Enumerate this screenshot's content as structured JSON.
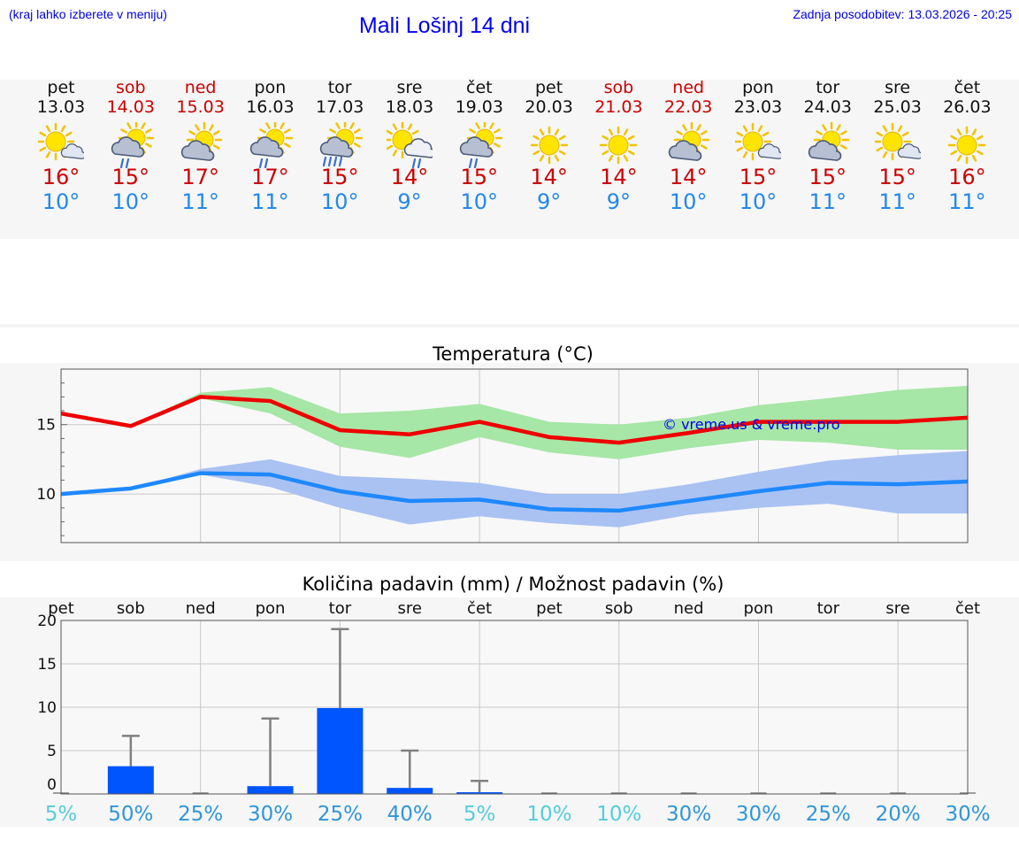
{
  "header": {
    "hint": "(kraj lahko izberete v meniju)",
    "title": "Mali Lošinj 14 dni",
    "updated": "Zadnja posodobitev: 13.03.2026 - 20:25"
  },
  "days": [
    {
      "name": "pet",
      "date": "13.03",
      "weekend": false,
      "icon": "partly-cloudy-icon",
      "max": "16°",
      "min": "10°"
    },
    {
      "name": "sob",
      "date": "14.03",
      "weekend": true,
      "icon": "cloud-rain-icon",
      "max": "15°",
      "min": "10°"
    },
    {
      "name": "ned",
      "date": "15.03",
      "weekend": true,
      "icon": "cloudy-sun-icon",
      "max": "17°",
      "min": "11°"
    },
    {
      "name": "pon",
      "date": "16.03",
      "weekend": false,
      "icon": "cloud-rain-icon",
      "max": "17°",
      "min": "11°"
    },
    {
      "name": "tor",
      "date": "17.03",
      "weekend": false,
      "icon": "cloud-heavy-rain-icon",
      "max": "15°",
      "min": "10°"
    },
    {
      "name": "sre",
      "date": "18.03",
      "weekend": false,
      "icon": "sun-cloud-rain-icon",
      "max": "14°",
      "min": "9°"
    },
    {
      "name": "čet",
      "date": "19.03",
      "weekend": false,
      "icon": "cloud-rain-icon",
      "max": "15°",
      "min": "10°"
    },
    {
      "name": "pet",
      "date": "20.03",
      "weekend": false,
      "icon": "sun-icon",
      "max": "14°",
      "min": "9°"
    },
    {
      "name": "sob",
      "date": "21.03",
      "weekend": true,
      "icon": "sun-icon",
      "max": "14°",
      "min": "9°"
    },
    {
      "name": "ned",
      "date": "22.03",
      "weekend": true,
      "icon": "cloudy-sun-icon",
      "max": "14°",
      "min": "10°"
    },
    {
      "name": "pon",
      "date": "23.03",
      "weekend": false,
      "icon": "partly-cloudy-icon",
      "max": "15°",
      "min": "10°"
    },
    {
      "name": "tor",
      "date": "24.03",
      "weekend": false,
      "icon": "cloudy-sun-icon",
      "max": "15°",
      "min": "11°"
    },
    {
      "name": "sre",
      "date": "25.03",
      "weekend": false,
      "icon": "partly-cloudy-icon",
      "max": "15°",
      "min": "11°"
    },
    {
      "name": "čet",
      "date": "26.03",
      "weekend": false,
      "icon": "sun-icon",
      "max": "16°",
      "min": "11°"
    }
  ],
  "chart_data": [
    {
      "type": "line",
      "title": "Temperatura (°C)",
      "watermark": "© vreme.us & vreme.pro",
      "ylim": [
        6.5,
        19
      ],
      "yticks": [
        10,
        15
      ],
      "x": [
        0,
        1,
        2,
        3,
        4,
        5,
        6,
        7,
        8,
        9,
        10,
        11,
        12,
        13
      ],
      "series": [
        {
          "name": "max",
          "color": "#ee0000",
          "values": [
            15.8,
            14.9,
            17.0,
            16.7,
            14.6,
            14.3,
            15.2,
            14.1,
            13.7,
            14.4,
            15.2,
            15.2,
            15.2,
            15.5
          ],
          "band_low": [
            15.8,
            14.9,
            16.9,
            15.8,
            13.4,
            12.6,
            14.1,
            13.0,
            12.5,
            13.3,
            13.9,
            13.7,
            13.2,
            13.2
          ],
          "band_high": [
            15.8,
            14.9,
            17.3,
            17.7,
            15.8,
            16.0,
            16.5,
            15.2,
            15.0,
            15.5,
            16.4,
            16.9,
            17.5,
            17.8
          ],
          "band_color": "#a6e6a6"
        },
        {
          "name": "min",
          "color": "#1e88ff",
          "values": [
            10.0,
            10.4,
            11.5,
            11.4,
            10.2,
            9.5,
            9.6,
            8.9,
            8.8,
            9.5,
            10.2,
            10.8,
            10.7,
            10.9
          ],
          "band_low": [
            10.0,
            10.4,
            11.4,
            10.5,
            9.0,
            7.8,
            8.4,
            7.9,
            7.6,
            8.5,
            9.0,
            9.3,
            8.6,
            8.6
          ],
          "band_high": [
            10.0,
            10.4,
            11.8,
            12.5,
            11.3,
            11.1,
            10.8,
            10.0,
            10.0,
            10.7,
            11.6,
            12.4,
            12.8,
            13.1
          ],
          "band_color": "#aac2f2"
        }
      ]
    },
    {
      "type": "bar",
      "title": "Količina padavin (mm) / Možnost padavin (%)",
      "ylim": [
        0,
        20
      ],
      "yticks": [
        0,
        5,
        10,
        15,
        20
      ],
      "categories": [
        "pet",
        "sob",
        "ned",
        "pon",
        "tor",
        "sre",
        "čet",
        "pet",
        "sob",
        "ned",
        "pon",
        "tor",
        "sre",
        "čet"
      ],
      "values": [
        0,
        3.2,
        0,
        0.9,
        9.9,
        0.7,
        0.2,
        0,
        0,
        0,
        0,
        0,
        0,
        0
      ],
      "error_high": [
        0,
        6.7,
        0,
        8.7,
        19.0,
        5.0,
        1.5,
        0,
        0,
        0,
        0,
        0,
        0,
        0
      ],
      "probability": [
        "5%",
        "50%",
        "25%",
        "30%",
        "25%",
        "40%",
        "5%",
        "10%",
        "10%",
        "30%",
        "30%",
        "25%",
        "20%",
        "30%"
      ],
      "bar_color": "#0055ff"
    }
  ]
}
